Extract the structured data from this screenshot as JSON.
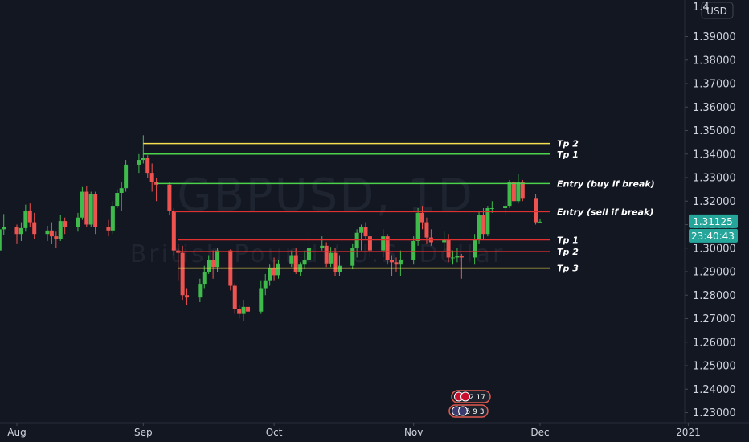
{
  "chart_data": {
    "type": "candlestick",
    "watermark": {
      "symbol": "GBPUSD, 1D",
      "description": "British Pound / U.S. Dollar"
    },
    "currency": "USD",
    "y_axis": {
      "range": [
        1.2225,
        1.4095
      ],
      "ticks": [
        "1.39000",
        "1.38000",
        "1.37000",
        "1.36000",
        "1.35000",
        "1.34000",
        "1.33000",
        "1.32000",
        "1.31000",
        "1.30000",
        "1.29000",
        "1.28000",
        "1.27000",
        "1.26000",
        "1.25000",
        "1.24000",
        "1.23000"
      ],
      "top_partial_label": "1.4"
    },
    "x_axis": {
      "ticks": [
        {
          "label": "Aug",
          "date": "2020-08-03"
        },
        {
          "label": "Sep",
          "date": "2020-09-01"
        },
        {
          "label": "Oct",
          "date": "2020-10-01"
        },
        {
          "label": "Nov",
          "date": "2020-11-02"
        },
        {
          "label": "Dec",
          "date": "2020-12-01"
        },
        {
          "label": "2021",
          "date": "2021-01-04"
        }
      ]
    },
    "last_price": "1.31125",
    "countdown": "23:40:43",
    "candles": [
      {
        "date": "2020-07-30",
        "o": 1.299,
        "h": 1.3095,
        "l": 1.2965,
        "c": 1.308
      },
      {
        "date": "2020-07-31",
        "o": 1.308,
        "h": 1.3145,
        "l": 1.3055,
        "c": 1.309
      },
      {
        "date": "2020-08-03",
        "o": 1.309,
        "h": 1.31,
        "l": 1.302,
        "c": 1.306
      },
      {
        "date": "2020-08-04",
        "o": 1.306,
        "h": 1.311,
        "l": 1.303,
        "c": 1.3085
      },
      {
        "date": "2020-08-05",
        "o": 1.3085,
        "h": 1.3185,
        "l": 1.307,
        "c": 1.316
      },
      {
        "date": "2020-08-06",
        "o": 1.316,
        "h": 1.319,
        "l": 1.309,
        "c": 1.311
      },
      {
        "date": "2020-08-07",
        "o": 1.311,
        "h": 1.315,
        "l": 1.304,
        "c": 1.306
      },
      {
        "date": "2020-08-10",
        "o": 1.306,
        "h": 1.3095,
        "l": 1.303,
        "c": 1.3075
      },
      {
        "date": "2020-08-11",
        "o": 1.3075,
        "h": 1.311,
        "l": 1.302,
        "c": 1.305
      },
      {
        "date": "2020-08-12",
        "o": 1.305,
        "h": 1.307,
        "l": 1.3,
        "c": 1.304
      },
      {
        "date": "2020-08-13",
        "o": 1.304,
        "h": 1.314,
        "l": 1.303,
        "c": 1.3115
      },
      {
        "date": "2020-08-14",
        "o": 1.3115,
        "h": 1.313,
        "l": 1.306,
        "c": 1.309
      },
      {
        "date": "2020-08-17",
        "o": 1.309,
        "h": 1.315,
        "l": 1.307,
        "c": 1.313
      },
      {
        "date": "2020-08-18",
        "o": 1.313,
        "h": 1.326,
        "l": 1.312,
        "c": 1.324
      },
      {
        "date": "2020-08-19",
        "o": 1.324,
        "h": 1.3265,
        "l": 1.309,
        "c": 1.31
      },
      {
        "date": "2020-08-20",
        "o": 1.31,
        "h": 1.324,
        "l": 1.309,
        "c": 1.323
      },
      {
        "date": "2020-08-21",
        "o": 1.323,
        "h": 1.324,
        "l": 1.306,
        "c": 1.309
      },
      {
        "date": "2020-08-24",
        "o": 1.309,
        "h": 1.312,
        "l": 1.305,
        "c": 1.3075
      },
      {
        "date": "2020-08-25",
        "o": 1.3075,
        "h": 1.32,
        "l": 1.306,
        "c": 1.318
      },
      {
        "date": "2020-08-26",
        "o": 1.318,
        "h": 1.325,
        "l": 1.317,
        "c": 1.3235
      },
      {
        "date": "2020-08-27",
        "o": 1.3235,
        "h": 1.328,
        "l": 1.316,
        "c": 1.3255
      },
      {
        "date": "2020-08-28",
        "o": 1.3255,
        "h": 1.3375,
        "l": 1.324,
        "c": 1.3355
      },
      {
        "date": "2020-08-31",
        "o": 1.3355,
        "h": 1.34,
        "l": 1.332,
        "c": 1.3375
      },
      {
        "date": "2020-09-01",
        "o": 1.3375,
        "h": 1.348,
        "l": 1.336,
        "c": 1.3385
      },
      {
        "date": "2020-09-02",
        "o": 1.3385,
        "h": 1.3395,
        "l": 1.33,
        "c": 1.332
      },
      {
        "date": "2020-09-03",
        "o": 1.332,
        "h": 1.336,
        "l": 1.324,
        "c": 1.328
      },
      {
        "date": "2020-09-04",
        "o": 1.328,
        "h": 1.33,
        "l": 1.32,
        "c": 1.327
      },
      {
        "date": "2020-09-07",
        "o": 1.327,
        "h": 1.328,
        "l": 1.314,
        "c": 1.316
      },
      {
        "date": "2020-09-08",
        "o": 1.316,
        "h": 1.317,
        "l": 1.297,
        "c": 1.299
      },
      {
        "date": "2020-09-09",
        "o": 1.299,
        "h": 1.302,
        "l": 1.286,
        "c": 1.298
      },
      {
        "date": "2020-09-10",
        "o": 1.298,
        "h": 1.301,
        "l": 1.278,
        "c": 1.28
      },
      {
        "date": "2020-09-11",
        "o": 1.28,
        "h": 1.283,
        "l": 1.276,
        "c": 1.279
      },
      {
        "date": "2020-09-14",
        "o": 1.279,
        "h": 1.287,
        "l": 1.277,
        "c": 1.2845
      },
      {
        "date": "2020-09-15",
        "o": 1.2845,
        "h": 1.2925,
        "l": 1.283,
        "c": 1.29
      },
      {
        "date": "2020-09-16",
        "o": 1.29,
        "h": 1.297,
        "l": 1.289,
        "c": 1.295
      },
      {
        "date": "2020-09-17",
        "o": 1.295,
        "h": 1.299,
        "l": 1.287,
        "c": 1.292
      },
      {
        "date": "2020-09-18",
        "o": 1.292,
        "h": 1.3,
        "l": 1.29,
        "c": 1.299
      },
      {
        "date": "2020-09-21",
        "o": 1.299,
        "h": 1.2995,
        "l": 1.282,
        "c": 1.284
      },
      {
        "date": "2020-09-22",
        "o": 1.284,
        "h": 1.285,
        "l": 1.272,
        "c": 1.274
      },
      {
        "date": "2020-09-23",
        "o": 1.274,
        "h": 1.276,
        "l": 1.27,
        "c": 1.272
      },
      {
        "date": "2020-09-24",
        "o": 1.272,
        "h": 1.278,
        "l": 1.269,
        "c": 1.275
      },
      {
        "date": "2020-09-25",
        "o": 1.275,
        "h": 1.277,
        "l": 1.27,
        "c": 1.273
      },
      {
        "date": "2020-09-28",
        "o": 1.273,
        "h": 1.286,
        "l": 1.272,
        "c": 1.283
      },
      {
        "date": "2020-09-29",
        "o": 1.283,
        "h": 1.289,
        "l": 1.28,
        "c": 1.286
      },
      {
        "date": "2020-09-30",
        "o": 1.286,
        "h": 1.293,
        "l": 1.284,
        "c": 1.2915
      },
      {
        "date": "2020-10-01",
        "o": 1.2915,
        "h": 1.296,
        "l": 1.286,
        "c": 1.2885
      },
      {
        "date": "2020-10-02",
        "o": 1.2885,
        "h": 1.295,
        "l": 1.287,
        "c": 1.2935
      },
      {
        "date": "2020-10-05",
        "o": 1.2935,
        "h": 1.299,
        "l": 1.292,
        "c": 1.297
      },
      {
        "date": "2020-10-06",
        "o": 1.297,
        "h": 1.3,
        "l": 1.289,
        "c": 1.29
      },
      {
        "date": "2020-10-07",
        "o": 1.29,
        "h": 1.294,
        "l": 1.288,
        "c": 1.293
      },
      {
        "date": "2020-10-08",
        "o": 1.293,
        "h": 1.299,
        "l": 1.291,
        "c": 1.295
      },
      {
        "date": "2020-10-09",
        "o": 1.295,
        "h": 1.307,
        "l": 1.294,
        "c": 1.3
      },
      {
        "date": "2020-10-12",
        "o": 1.3,
        "h": 1.305,
        "l": 1.299,
        "c": 1.301
      },
      {
        "date": "2020-10-13",
        "o": 1.301,
        "h": 1.3025,
        "l": 1.292,
        "c": 1.2935
      },
      {
        "date": "2020-10-14",
        "o": 1.2935,
        "h": 1.3005,
        "l": 1.292,
        "c": 1.298
      },
      {
        "date": "2020-10-15",
        "o": 1.298,
        "h": 1.3,
        "l": 1.288,
        "c": 1.29
      },
      {
        "date": "2020-10-16",
        "o": 1.29,
        "h": 1.297,
        "l": 1.288,
        "c": 1.2925
      },
      {
        "date": "2020-10-19",
        "o": 1.2925,
        "h": 1.302,
        "l": 1.291,
        "c": 1.3
      },
      {
        "date": "2020-10-20",
        "o": 1.3,
        "h": 1.308,
        "l": 1.296,
        "c": 1.3065
      },
      {
        "date": "2020-10-21",
        "o": 1.3065,
        "h": 1.31,
        "l": 1.299,
        "c": 1.309
      },
      {
        "date": "2020-10-22",
        "o": 1.309,
        "h": 1.311,
        "l": 1.304,
        "c": 1.305
      },
      {
        "date": "2020-10-23",
        "o": 1.305,
        "h": 1.307,
        "l": 1.296,
        "c": 1.299
      },
      {
        "date": "2020-10-26",
        "o": 1.299,
        "h": 1.308,
        "l": 1.296,
        "c": 1.305
      },
      {
        "date": "2020-10-27",
        "o": 1.305,
        "h": 1.306,
        "l": 1.293,
        "c": 1.295
      },
      {
        "date": "2020-10-28",
        "o": 1.295,
        "h": 1.297,
        "l": 1.288,
        "c": 1.294
      },
      {
        "date": "2020-10-29",
        "o": 1.294,
        "h": 1.296,
        "l": 1.29,
        "c": 1.293
      },
      {
        "date": "2020-10-30",
        "o": 1.293,
        "h": 1.299,
        "l": 1.288,
        "c": 1.295
      },
      {
        "date": "2020-11-02",
        "o": 1.295,
        "h": 1.305,
        "l": 1.293,
        "c": 1.303
      },
      {
        "date": "2020-11-03",
        "o": 1.303,
        "h": 1.317,
        "l": 1.301,
        "c": 1.315
      },
      {
        "date": "2020-11-04",
        "o": 1.315,
        "h": 1.318,
        "l": 1.308,
        "c": 1.311
      },
      {
        "date": "2020-11-05",
        "o": 1.311,
        "h": 1.313,
        "l": 1.302,
        "c": 1.3045
      },
      {
        "date": "2020-11-06",
        "o": 1.3045,
        "h": 1.308,
        "l": 1.301,
        "c": 1.3025
      },
      {
        "date": "2020-11-09",
        "o": 1.3025,
        "h": 1.307,
        "l": 1.299,
        "c": 1.304
      },
      {
        "date": "2020-11-10",
        "o": 1.304,
        "h": 1.306,
        "l": 1.294,
        "c": 1.296
      },
      {
        "date": "2020-11-11",
        "o": 1.296,
        "h": 1.299,
        "l": 1.293,
        "c": 1.296
      },
      {
        "date": "2020-11-12",
        "o": 1.296,
        "h": 1.3,
        "l": 1.294,
        "c": 1.2965
      },
      {
        "date": "2020-11-13",
        "o": 1.2965,
        "h": 1.2975,
        "l": 1.287,
        "c": 1.296
      },
      {
        "date": "2020-11-16",
        "o": 1.296,
        "h": 1.306,
        "l": 1.293,
        "c": 1.304
      },
      {
        "date": "2020-11-17",
        "o": 1.304,
        "h": 1.316,
        "l": 1.302,
        "c": 1.314
      },
      {
        "date": "2020-11-18",
        "o": 1.314,
        "h": 1.317,
        "l": 1.304,
        "c": 1.306
      },
      {
        "date": "2020-11-19",
        "o": 1.306,
        "h": 1.318,
        "l": 1.305,
        "c": 1.317
      },
      {
        "date": "2020-11-20",
        "o": 1.317,
        "h": 1.32,
        "l": 1.315,
        "c": 1.317
      },
      {
        "date": "2020-11-23",
        "o": 1.317,
        "h": 1.32,
        "l": 1.3145,
        "c": 1.318
      },
      {
        "date": "2020-11-24",
        "o": 1.318,
        "h": 1.329,
        "l": 1.317,
        "c": 1.328
      },
      {
        "date": "2020-11-25",
        "o": 1.328,
        "h": 1.329,
        "l": 1.319,
        "c": 1.32
      },
      {
        "date": "2020-11-26",
        "o": 1.32,
        "h": 1.3315,
        "l": 1.319,
        "c": 1.328
      },
      {
        "date": "2020-11-27",
        "o": 1.328,
        "h": 1.329,
        "l": 1.32,
        "c": 1.321
      },
      {
        "date": "2020-11-30",
        "o": 1.321,
        "h": 1.323,
        "l": 1.31,
        "c": 1.311
      },
      {
        "date": "2020-12-01",
        "o": 1.311,
        "h": 1.3125,
        "l": 1.3105,
        "c": 1.31125
      }
    ],
    "annotations": [
      {
        "label": "Tp 2",
        "price": 1.3445,
        "color": "#f5e050",
        "start_date": "2020-09-01"
      },
      {
        "label": "Tp 1",
        "price": 1.34,
        "color": "#4cd34c",
        "start_date": "2020-09-01"
      },
      {
        "label": "Entry (buy if break)",
        "price": 1.3275,
        "color": "#4cd34c",
        "start_date": "2020-09-04"
      },
      {
        "label": "Entry (sell if break)",
        "price": 1.3155,
        "color": "#e03131",
        "start_date": "2020-09-08"
      },
      {
        "label": "Tp 1",
        "price": 1.3035,
        "color": "#e03131",
        "start_date": "2020-09-09"
      },
      {
        "label": "Tp 2",
        "price": 1.2985,
        "color": "#e03131",
        "start_date": "2020-09-09"
      },
      {
        "label": "Tp 3",
        "price": 1.2915,
        "color": "#f5e050",
        "start_date": "2020-09-09"
      }
    ],
    "events": [
      {
        "flag": "gb",
        "value": "2 17"
      },
      {
        "flag": "us",
        "value": "5 9 3"
      }
    ],
    "colors": {
      "background": "#131722",
      "up": "#26a69a",
      "up_body": "#3fbb4c",
      "down": "#ef5350",
      "axis_text": "#d1d4dc",
      "last_price_badge": "#26a69a",
      "watermark": "#1f2431"
    }
  }
}
